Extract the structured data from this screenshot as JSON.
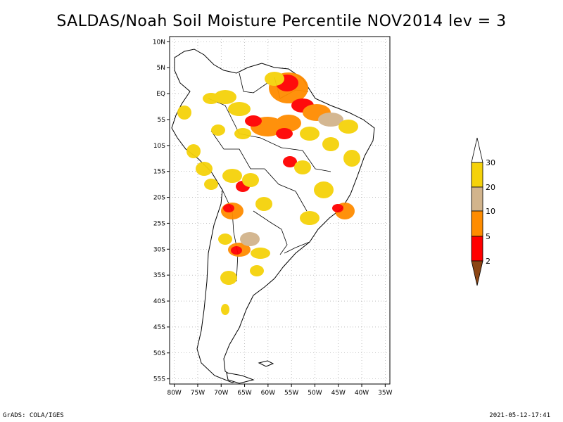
{
  "title": "SALDAS/Noah Soil Moisture Percentile NOV2014 lev = 3",
  "footer": {
    "left": "GrADS: COLA/IGES",
    "right": "2021-05-12-17:41"
  },
  "map": {
    "lat_labels": [
      "10N",
      "5N",
      "EQ",
      "5S",
      "10S",
      "15S",
      "20S",
      "25S",
      "30S",
      "35S",
      "40S",
      "45S",
      "50S",
      "55S"
    ],
    "lon_labels": [
      "80W",
      "75W",
      "70W",
      "65W",
      "60W",
      "55W",
      "50W",
      "45W",
      "40W",
      "35W"
    ],
    "lat_range": [
      -56,
      11
    ],
    "lon_range": [
      -81,
      -34
    ],
    "grid": true
  },
  "legend": {
    "labels": [
      "30",
      "20",
      "10",
      "5",
      "2"
    ],
    "colors": {
      "above30": "#ffffff",
      "c20_30": "#f5d20a",
      "c10_20": "#d2b48c",
      "c5_10": "#ff8c00",
      "c2_5": "#ff0000",
      "below2": "#8b4513"
    }
  },
  "colors": {
    "land_outline": "#000000",
    "grid": "#999999"
  }
}
